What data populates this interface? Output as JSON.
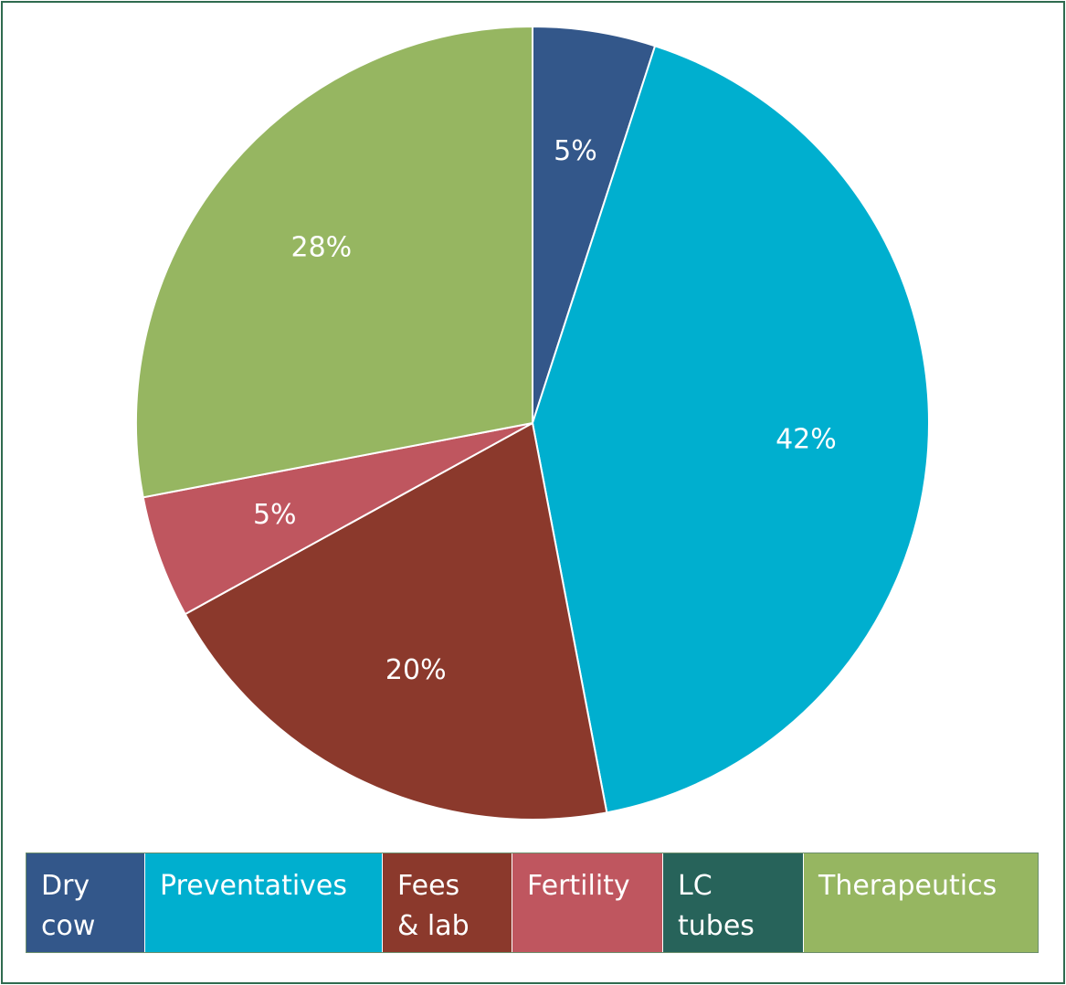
{
  "chart_data": {
    "type": "pie",
    "start_angle_deg": 0,
    "direction": "clockwise",
    "legend_position": "bottom",
    "slices": [
      {
        "name": "Dry cow",
        "legend_lines": [
          "Dry",
          "cow"
        ],
        "value": 5,
        "label": "5%",
        "color": "#33578a"
      },
      {
        "name": "Preventatives",
        "legend_lines": [
          "Preventatives"
        ],
        "value": 42,
        "label": "42%",
        "color": "#00afcf"
      },
      {
        "name": "Fees & lab",
        "legend_lines": [
          "Fees",
          "& lab"
        ],
        "value": 20,
        "label": "20%",
        "color": "#8b392c"
      },
      {
        "name": "Fertility",
        "legend_lines": [
          "Fertility"
        ],
        "value": 5,
        "label": "5%",
        "color": "#bf565f"
      },
      {
        "name": "LC tubes",
        "legend_lines": [
          "LC",
          "tubes"
        ],
        "value": 0,
        "label": "",
        "color": "#27635a"
      },
      {
        "name": "Therapeutics",
        "legend_lines": [
          "Therapeutics"
        ],
        "value": 28,
        "label": "28%",
        "color": "#96b661"
      }
    ]
  }
}
